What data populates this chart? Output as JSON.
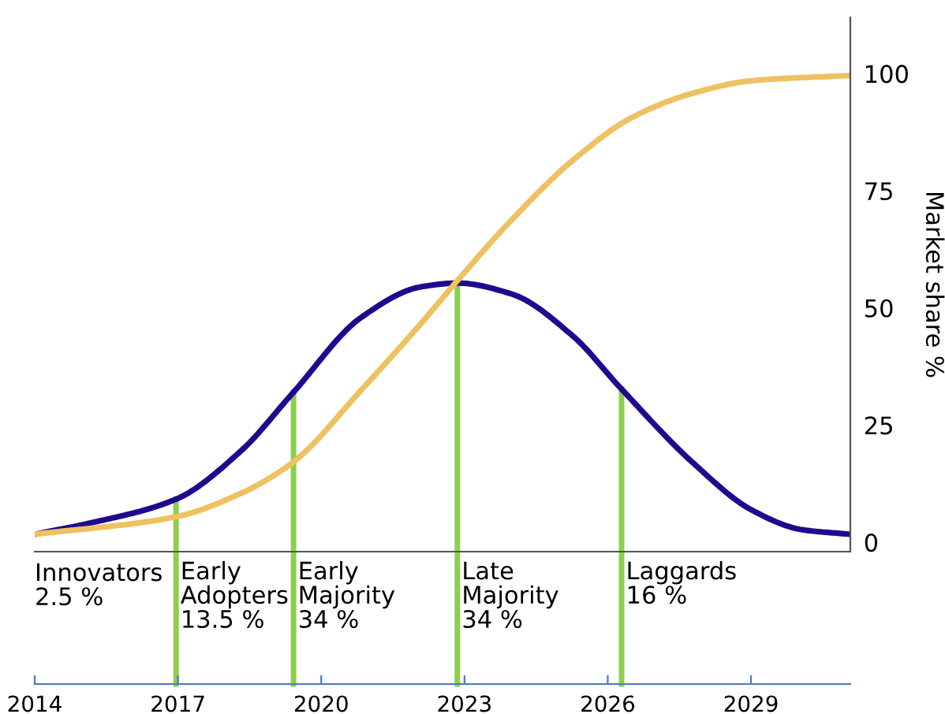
{
  "chart_data": {
    "type": "line",
    "ylabel": "Market share %",
    "xlim": [
      2014,
      2031.08
    ],
    "ylim": [
      -2,
      112
    ],
    "yticks": [
      0,
      25,
      50,
      75,
      100
    ],
    "xticks": [
      2014,
      2017,
      2020,
      2023,
      2026,
      2029
    ],
    "grid": false,
    "legend": false,
    "marker": "none",
    "line_style": "solid",
    "series": [
      {
        "color": "#1f0a8f",
        "x": [
          2014,
          2015.16,
          2016.94,
          2018.33,
          2019.4,
          2020.84,
          2022.09,
          2022.85,
          2023.98,
          2025.27,
          2026.26,
          2027.78,
          2029.03,
          2030.06,
          2031.08
        ],
        "values": [
          1.7,
          4.1,
          9.1,
          19.6,
          31.8,
          48,
          54.5,
          55.3,
          53,
          44,
          33,
          17,
          6.8,
          2.7,
          1.7
        ]
      },
      {
        "color": "#eec162",
        "x": [
          2014,
          2016.94,
          2018.33,
          2019.4,
          2020.84,
          2022.09,
          2022.85,
          2023.98,
          2025.27,
          2026.52,
          2027.78,
          2029.03,
          2031.08
        ],
        "values": [
          1.7,
          5.4,
          10.5,
          17,
          32.5,
          46.7,
          55.8,
          68.7,
          81.5,
          90.7,
          95.8,
          98.5,
          99.6
        ]
      }
    ],
    "ref_lines": [
      {
        "axis": "x",
        "value": 2016.96,
        "color": "#8ccf4d"
      },
      {
        "axis": "x",
        "value": 2019.42,
        "color": "#8ccf4d"
      },
      {
        "axis": "x",
        "value": 2022.85,
        "color": "#8ccf4d"
      },
      {
        "axis": "x",
        "value": 2026.29,
        "color": "#8ccf4d"
      }
    ],
    "annotations": [
      "Innovators\n2.5 %",
      {
        "text": "Early\nAdopters\n13.5 %",
        "x": 2016.96,
        "y": -4
      },
      {
        "text": "Early\nMajority\n34 %",
        "x": 2019.42,
        "y": -4
      },
      {
        "text": "Late\nMajority\n34 %",
        "x": 2022.85,
        "y": -4
      },
      {
        "text": "Laggards\n16 %",
        "x": 2026.29,
        "y": -4
      }
    ]
  }
}
